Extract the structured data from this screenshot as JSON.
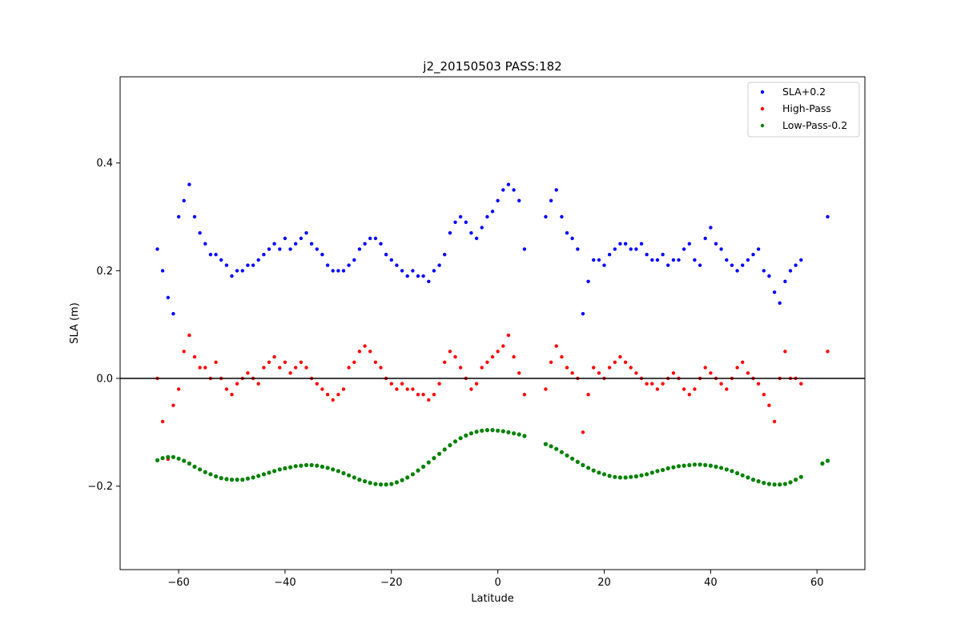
{
  "chart_data": {
    "type": "scatter",
    "title": "j2_20150503 PASS:182",
    "xlabel": "Latitude",
    "ylabel": "SLA (m)",
    "xlim": [
      -71,
      69
    ],
    "ylim": [
      -0.355,
      0.56
    ],
    "xticks": [
      -60,
      -40,
      -20,
      0,
      20,
      40,
      60
    ],
    "xtick_labels": [
      "−60",
      "−40",
      "−20",
      "0",
      "20",
      "40",
      "60"
    ],
    "yticks": [
      -0.2,
      0.0,
      0.2,
      0.4
    ],
    "ytick_labels": [
      "−0.2",
      "0.0",
      "0.2",
      "0.4"
    ],
    "grid": false,
    "legend_position": "upper right",
    "reference_line": {
      "y": 0.0,
      "color": "#000000"
    },
    "series": [
      {
        "name": "SLA+0.2",
        "color": "#0000ff",
        "x": [
          -64,
          -63,
          -62,
          -61,
          -60,
          -59,
          -58,
          -57,
          -56,
          -55,
          -54,
          -53,
          -52,
          -51,
          -50,
          -49,
          -48,
          -47,
          -46,
          -45,
          -44,
          -43,
          -42,
          -41,
          -40,
          -39,
          -38,
          -37,
          -36,
          -35,
          -34,
          -33,
          -32,
          -31,
          -30,
          -29,
          -28,
          -27,
          -26,
          -25,
          -24,
          -23,
          -22,
          -21,
          -20,
          -19,
          -18,
          -17,
          -16,
          -15,
          -14,
          -13,
          -12,
          -11,
          -10,
          -9,
          -8,
          -7,
          -6,
          -5,
          -4,
          -3,
          -2,
          -1,
          0,
          1,
          2,
          3,
          4,
          5,
          9,
          10,
          11,
          12,
          13,
          14,
          15,
          16,
          17,
          18,
          19,
          20,
          21,
          22,
          23,
          24,
          25,
          26,
          27,
          28,
          29,
          30,
          31,
          32,
          33,
          34,
          35,
          36,
          37,
          38,
          39,
          40,
          41,
          42,
          43,
          44,
          45,
          46,
          47,
          48,
          49,
          50,
          51,
          52,
          53,
          54,
          55,
          56,
          57,
          62
        ],
        "y": [
          0.24,
          0.2,
          0.15,
          0.12,
          0.3,
          0.33,
          0.36,
          0.3,
          0.27,
          0.25,
          0.23,
          0.23,
          0.22,
          0.21,
          0.19,
          0.2,
          0.2,
          0.21,
          0.21,
          0.22,
          0.23,
          0.24,
          0.25,
          0.24,
          0.26,
          0.24,
          0.25,
          0.26,
          0.27,
          0.25,
          0.24,
          0.23,
          0.21,
          0.2,
          0.2,
          0.2,
          0.21,
          0.22,
          0.24,
          0.25,
          0.26,
          0.26,
          0.25,
          0.23,
          0.22,
          0.21,
          0.2,
          0.19,
          0.2,
          0.19,
          0.19,
          0.18,
          0.2,
          0.21,
          0.23,
          0.27,
          0.29,
          0.3,
          0.29,
          0.27,
          0.26,
          0.28,
          0.3,
          0.31,
          0.33,
          0.35,
          0.36,
          0.35,
          0.33,
          0.24,
          0.3,
          0.33,
          0.35,
          0.3,
          0.27,
          0.26,
          0.24,
          0.12,
          0.18,
          0.22,
          0.22,
          0.21,
          0.23,
          0.24,
          0.25,
          0.25,
          0.24,
          0.24,
          0.25,
          0.23,
          0.22,
          0.22,
          0.23,
          0.21,
          0.22,
          0.22,
          0.24,
          0.25,
          0.22,
          0.21,
          0.26,
          0.28,
          0.25,
          0.24,
          0.22,
          0.21,
          0.2,
          0.21,
          0.22,
          0.23,
          0.24,
          0.2,
          0.19,
          0.16,
          0.14,
          0.18,
          0.2,
          0.21,
          0.22,
          0.3
        ]
      },
      {
        "name": "High-Pass",
        "color": "#ff0000",
        "x": [
          -64,
          -63,
          -62,
          -61,
          -60,
          -59,
          -58,
          -57,
          -56,
          -55,
          -54,
          -53,
          -52,
          -51,
          -50,
          -49,
          -48,
          -47,
          -46,
          -45,
          -44,
          -43,
          -42,
          -41,
          -40,
          -39,
          -38,
          -37,
          -36,
          -35,
          -34,
          -33,
          -32,
          -31,
          -30,
          -29,
          -28,
          -27,
          -26,
          -25,
          -24,
          -23,
          -22,
          -21,
          -20,
          -19,
          -18,
          -17,
          -16,
          -15,
          -14,
          -13,
          -12,
          -11,
          -10,
          -9,
          -8,
          -7,
          -6,
          -5,
          -4,
          -3,
          -2,
          -1,
          0,
          1,
          2,
          3,
          4,
          5,
          9,
          10,
          11,
          12,
          13,
          14,
          15,
          16,
          17,
          18,
          19,
          20,
          21,
          22,
          23,
          24,
          25,
          26,
          27,
          28,
          29,
          30,
          31,
          32,
          33,
          34,
          35,
          36,
          37,
          38,
          39,
          40,
          41,
          42,
          43,
          44,
          45,
          46,
          47,
          48,
          49,
          50,
          51,
          52,
          53,
          54,
          55,
          56,
          57,
          62
        ],
        "y": [
          0.0,
          -0.08,
          -0.15,
          -0.05,
          -0.02,
          0.05,
          0.08,
          0.04,
          0.02,
          0.02,
          0.0,
          0.03,
          0.0,
          -0.02,
          -0.03,
          -0.01,
          0.0,
          0.01,
          0.0,
          -0.01,
          0.02,
          0.03,
          0.04,
          0.02,
          0.03,
          0.01,
          0.02,
          0.03,
          0.02,
          0.0,
          -0.01,
          -0.02,
          -0.03,
          -0.04,
          -0.03,
          -0.02,
          0.02,
          0.03,
          0.05,
          0.06,
          0.05,
          0.03,
          0.02,
          0.0,
          -0.01,
          -0.02,
          -0.01,
          -0.02,
          -0.02,
          -0.03,
          -0.03,
          -0.04,
          -0.03,
          -0.01,
          0.03,
          0.05,
          0.04,
          0.02,
          0.0,
          -0.02,
          -0.01,
          0.02,
          0.03,
          0.04,
          0.05,
          0.06,
          0.08,
          0.04,
          0.01,
          -0.03,
          -0.02,
          0.03,
          0.06,
          0.04,
          0.02,
          0.01,
          0.0,
          -0.1,
          -0.03,
          0.02,
          0.01,
          0.0,
          0.02,
          0.03,
          0.04,
          0.03,
          0.02,
          0.01,
          0.0,
          -0.01,
          -0.01,
          -0.02,
          -0.01,
          0.0,
          0.01,
          0.0,
          -0.02,
          -0.03,
          -0.02,
          0.0,
          0.02,
          0.01,
          0.0,
          -0.01,
          -0.02,
          0.0,
          0.02,
          0.03,
          0.01,
          0.0,
          -0.01,
          -0.03,
          -0.05,
          -0.08,
          0.0,
          0.05,
          0.0,
          0.0,
          -0.01,
          0.05
        ]
      },
      {
        "name": "Low-Pass-0.2",
        "color": "#008000",
        "x": [
          -64,
          -63,
          -62,
          -61,
          -60,
          -59,
          -58,
          -57,
          -56,
          -55,
          -54,
          -53,
          -52,
          -51,
          -50,
          -49,
          -48,
          -47,
          -46,
          -45,
          -44,
          -43,
          -42,
          -41,
          -40,
          -39,
          -38,
          -37,
          -36,
          -35,
          -34,
          -33,
          -32,
          -31,
          -30,
          -29,
          -28,
          -27,
          -26,
          -25,
          -24,
          -23,
          -22,
          -21,
          -20,
          -19,
          -18,
          -17,
          -16,
          -15,
          -14,
          -13,
          -12,
          -11,
          -10,
          -9,
          -8,
          -7,
          -6,
          -5,
          -4,
          -3,
          -2,
          -1,
          0,
          1,
          2,
          3,
          4,
          5,
          9,
          10,
          11,
          12,
          13,
          14,
          15,
          16,
          17,
          18,
          19,
          20,
          21,
          22,
          23,
          24,
          25,
          26,
          27,
          28,
          29,
          30,
          31,
          32,
          33,
          34,
          35,
          36,
          37,
          38,
          39,
          40,
          41,
          42,
          43,
          44,
          45,
          46,
          47,
          48,
          49,
          50,
          51,
          52,
          53,
          54,
          55,
          56,
          57,
          61,
          62
        ],
        "y": [
          -0.152,
          -0.148,
          -0.146,
          -0.146,
          -0.149,
          -0.153,
          -0.158,
          -0.164,
          -0.169,
          -0.174,
          -0.178,
          -0.182,
          -0.185,
          -0.187,
          -0.188,
          -0.188,
          -0.188,
          -0.186,
          -0.184,
          -0.181,
          -0.178,
          -0.175,
          -0.172,
          -0.169,
          -0.167,
          -0.165,
          -0.163,
          -0.162,
          -0.161,
          -0.161,
          -0.162,
          -0.164,
          -0.166,
          -0.169,
          -0.172,
          -0.176,
          -0.18,
          -0.184,
          -0.188,
          -0.191,
          -0.194,
          -0.196,
          -0.197,
          -0.197,
          -0.196,
          -0.193,
          -0.189,
          -0.184,
          -0.178,
          -0.171,
          -0.164,
          -0.156,
          -0.148,
          -0.14,
          -0.132,
          -0.124,
          -0.117,
          -0.111,
          -0.106,
          -0.102,
          -0.099,
          -0.097,
          -0.096,
          -0.096,
          -0.097,
          -0.098,
          -0.1,
          -0.102,
          -0.104,
          -0.107,
          -0.122,
          -0.126,
          -0.131,
          -0.137,
          -0.143,
          -0.149,
          -0.155,
          -0.161,
          -0.166,
          -0.171,
          -0.175,
          -0.178,
          -0.181,
          -0.183,
          -0.184,
          -0.184,
          -0.183,
          -0.182,
          -0.18,
          -0.178,
          -0.175,
          -0.172,
          -0.17,
          -0.167,
          -0.165,
          -0.163,
          -0.162,
          -0.161,
          -0.16,
          -0.16,
          -0.161,
          -0.162,
          -0.164,
          -0.166,
          -0.169,
          -0.172,
          -0.176,
          -0.18,
          -0.184,
          -0.188,
          -0.191,
          -0.194,
          -0.196,
          -0.197,
          -0.197,
          -0.196,
          -0.193,
          -0.188,
          -0.183,
          -0.158,
          -0.153
        ]
      }
    ]
  }
}
